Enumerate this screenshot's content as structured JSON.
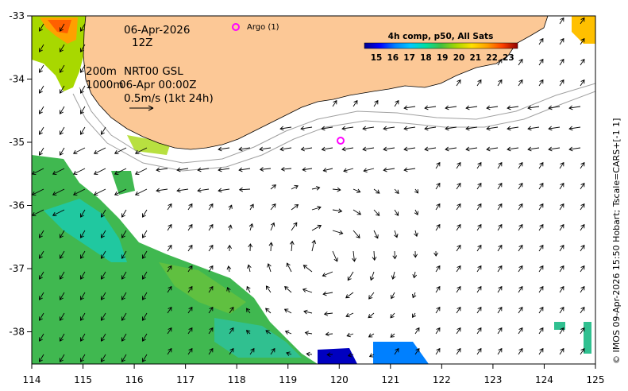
{
  "annotations": {
    "date": "06-Apr-2026",
    "hour": "12Z",
    "depth_line1": "200m",
    "depth_line2": "1000m",
    "nrt": "NRT00 GSL",
    "time": "06-Apr 00:00Z",
    "scale": "0.5m/s (1kt 24h)",
    "argo": "Argo (1)"
  },
  "colorbar": {
    "title": "4h comp, p50, All Sats",
    "ticks": [
      "15",
      "16",
      "17",
      "18",
      "19",
      "20",
      "21",
      "22",
      "23"
    ],
    "colors": [
      "#00008b",
      "#0000ff",
      "#0080ff",
      "#00c0ff",
      "#00e0a0",
      "#40c040",
      "#a0d800",
      "#ffe000",
      "#ffa000",
      "#ff5000",
      "#d00000",
      "#800000"
    ]
  },
  "axes": {
    "x_ticks": [
      "114",
      "115",
      "116",
      "117",
      "118",
      "119",
      "120",
      "121",
      "122",
      "123",
      "124",
      "125"
    ],
    "y_ticks": [
      "-33",
      "-34",
      "-35",
      "-36",
      "-37",
      "-38"
    ]
  },
  "credit": "© IMOS 09-Apr-2026 15:50 Hobart; Tscale=CARS+[-1 1]",
  "colors": {
    "land": "#fcc896",
    "argo": "#ff00ff"
  }
}
